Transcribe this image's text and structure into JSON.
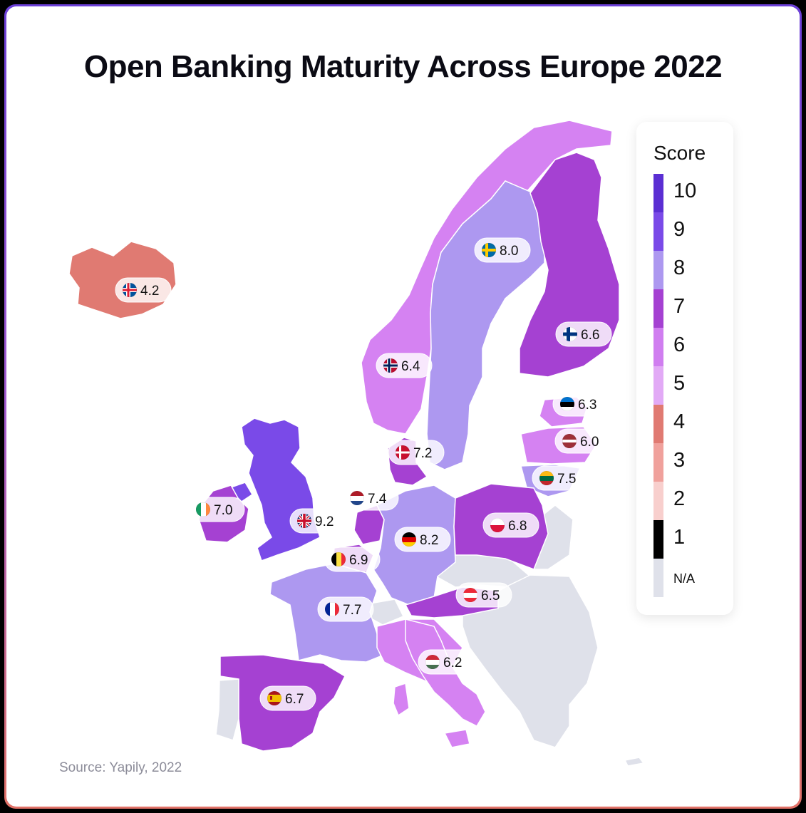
{
  "title": "Open Banking Maturity Across Europe 2022",
  "source": "Source: Yapily, 2022",
  "legend": {
    "title": "Score",
    "items": [
      {
        "label": "10",
        "color": "#5b2fd3"
      },
      {
        "label": "9",
        "color": "#7a4ae8"
      },
      {
        "label": "8",
        "color": "#ad98f0"
      },
      {
        "label": "7",
        "color": "#a541d2"
      },
      {
        "label": "6",
        "color": "#d07ef0"
      },
      {
        "label": "5",
        "color": "#e2aaf6"
      },
      {
        "label": "4",
        "color": "#e07a72"
      },
      {
        "label": "3",
        "color": "#f0a19c"
      },
      {
        "label": "2",
        "color": "#f8cfcd"
      },
      {
        "label": "1",
        "color": "#000000"
      },
      {
        "label": "N/A",
        "color": "#dfe1ea"
      }
    ]
  },
  "countries": [
    {
      "name": "Iceland",
      "score": "4.2",
      "color": "#e07a72",
      "flag": "iceland-flag-icon"
    },
    {
      "name": "Norway",
      "score": "6.4",
      "color": "#d582f2",
      "flag": "norway-flag-icon"
    },
    {
      "name": "Sweden",
      "score": "8.0",
      "color": "#ad98f0",
      "flag": "sweden-flag-icon"
    },
    {
      "name": "Finland",
      "score": "6.6",
      "color": "#a541d2",
      "flag": "finland-flag-icon"
    },
    {
      "name": "Estonia",
      "score": "6.3",
      "color": "#d582f2",
      "flag": "estonia-flag-icon"
    },
    {
      "name": "Latvia",
      "score": "6.0",
      "color": "#d582f2",
      "flag": "latvia-flag-icon"
    },
    {
      "name": "Lithuania",
      "score": "7.5",
      "color": "#ad98f0",
      "flag": "lithuania-flag-icon"
    },
    {
      "name": "Denmark",
      "score": "7.2",
      "color": "#a541d2",
      "flag": "denmark-flag-icon"
    },
    {
      "name": "Netherlands",
      "score": "7.4",
      "color": "#a541d2",
      "flag": "netherlands-flag-icon"
    },
    {
      "name": "Ireland",
      "score": "7.0",
      "color": "#a541d2",
      "flag": "ireland-flag-icon"
    },
    {
      "name": "United Kingdom",
      "score": "9.2",
      "color": "#7a4ae8",
      "flag": "uk-flag-icon"
    },
    {
      "name": "Germany",
      "score": "8.2",
      "color": "#ad98f0",
      "flag": "germany-flag-icon"
    },
    {
      "name": "Poland",
      "score": "6.8",
      "color": "#a541d2",
      "flag": "poland-flag-icon"
    },
    {
      "name": "Belgium",
      "score": "6.9",
      "color": "#a541d2",
      "flag": "belgium-flag-icon"
    },
    {
      "name": "France",
      "score": "7.7",
      "color": "#ad98f0",
      "flag": "france-flag-icon"
    },
    {
      "name": "Austria",
      "score": "6.5",
      "color": "#a541d2",
      "flag": "austria-flag-icon"
    },
    {
      "name": "Hungary",
      "score": "6.2",
      "color": "#d582f2",
      "flag": "hungary-flag-icon"
    },
    {
      "name": "Spain",
      "score": "6.7",
      "color": "#a541d2",
      "flag": "spain-flag-icon"
    },
    {
      "name": "Italy",
      "score": "",
      "color": "#d582f2",
      "flag": ""
    },
    {
      "name": "Portugal",
      "score": "",
      "color": "#dfe1ea",
      "flag": ""
    },
    {
      "name": "Switzerland",
      "score": "",
      "color": "#dfe1ea",
      "flag": ""
    },
    {
      "name": "Czechia",
      "score": "",
      "color": "#dfe1ea",
      "flag": ""
    },
    {
      "name": "Balkans",
      "score": "",
      "color": "#dfe1ea",
      "flag": ""
    }
  ]
}
